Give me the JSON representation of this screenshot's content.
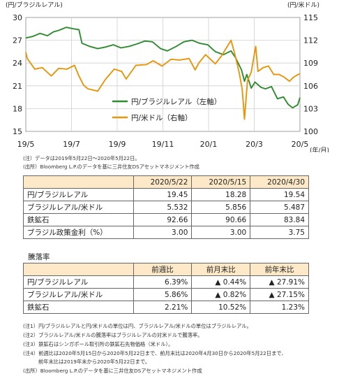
{
  "chart_data": {
    "type": "line",
    "y_left_label": "(円/ブラジルレアル)",
    "y_right_label": "(円/米ドル)",
    "x_unit_label": "(年/月)",
    "x_ticks": [
      "19/5",
      "19/7",
      "19/9",
      "19/11",
      "20/1",
      "20/3",
      "20/5"
    ],
    "y_left_ticks": [
      "30",
      "27",
      "24",
      "21",
      "18",
      "15"
    ],
    "y_right_ticks": [
      "115",
      "112",
      "109",
      "106",
      "103",
      "100"
    ],
    "y_left_lim": [
      15,
      30
    ],
    "y_right_lim": [
      100,
      115
    ],
    "x_range": [
      "2019-05-22",
      "2020-05-22"
    ],
    "grid": true,
    "legend_position": "center-right",
    "series": [
      {
        "name": "円/ブラジルレアル（左軸）",
        "axis": "left",
        "color": "#2e8b2e",
        "points": [
          [
            "2019-05-22",
            27.3
          ],
          [
            "2019-05-31",
            27.5
          ],
          [
            "2019-06-10",
            27.9
          ],
          [
            "2019-06-20",
            27.6
          ],
          [
            "2019-06-28",
            28.1
          ],
          [
            "2019-07-05",
            28.3
          ],
          [
            "2019-07-15",
            28.7
          ],
          [
            "2019-07-25",
            28.5
          ],
          [
            "2019-08-01",
            28.4
          ],
          [
            "2019-08-05",
            26.6
          ],
          [
            "2019-08-15",
            26.2
          ],
          [
            "2019-08-26",
            25.9
          ],
          [
            "2019-09-05",
            26.1
          ],
          [
            "2019-09-16",
            26.4
          ],
          [
            "2019-09-26",
            26.0
          ],
          [
            "2019-10-07",
            26.2
          ],
          [
            "2019-10-17",
            26.5
          ],
          [
            "2019-10-28",
            26.9
          ],
          [
            "2019-11-07",
            26.8
          ],
          [
            "2019-11-18",
            25.9
          ],
          [
            "2019-11-27",
            25.6
          ],
          [
            "2019-12-09",
            26.2
          ],
          [
            "2019-12-19",
            26.8
          ],
          [
            "2019-12-30",
            27.0
          ],
          [
            "2020-01-09",
            26.6
          ],
          [
            "2020-01-20",
            26.4
          ],
          [
            "2020-01-30",
            25.5
          ],
          [
            "2020-02-10",
            25.1
          ],
          [
            "2020-02-20",
            25.6
          ],
          [
            "2020-02-26",
            24.7
          ],
          [
            "2020-03-05",
            23.1
          ],
          [
            "2020-03-09",
            21.6
          ],
          [
            "2020-03-12",
            22.5
          ],
          [
            "2020-03-18",
            20.7
          ],
          [
            "2020-03-23",
            21.5
          ],
          [
            "2020-03-31",
            20.8
          ],
          [
            "2020-04-06",
            20.6
          ],
          [
            "2020-04-14",
            20.9
          ],
          [
            "2020-04-22",
            19.3
          ],
          [
            "2020-04-30",
            19.54
          ],
          [
            "2020-05-06",
            18.6
          ],
          [
            "2020-05-12",
            18.1
          ],
          [
            "2020-05-15",
            18.28
          ],
          [
            "2020-05-19",
            18.5
          ],
          [
            "2020-05-22",
            19.45
          ]
        ]
      },
      {
        "name": "円/米ドル（右軸）",
        "axis": "right",
        "color": "#e8950c",
        "points": [
          [
            "2019-05-22",
            110.4
          ],
          [
            "2019-05-24",
            109.6
          ],
          [
            "2019-06-03",
            108.2
          ],
          [
            "2019-06-13",
            108.4
          ],
          [
            "2019-06-25",
            107.3
          ],
          [
            "2019-07-05",
            108.3
          ],
          [
            "2019-07-16",
            108.2
          ],
          [
            "2019-07-26",
            108.7
          ],
          [
            "2019-08-01",
            107.3
          ],
          [
            "2019-08-07",
            106.1
          ],
          [
            "2019-08-13",
            105.6
          ],
          [
            "2019-08-26",
            105.3
          ],
          [
            "2019-09-05",
            106.8
          ],
          [
            "2019-09-17",
            108.2
          ],
          [
            "2019-09-27",
            107.9
          ],
          [
            "2019-10-03",
            106.9
          ],
          [
            "2019-10-16",
            108.7
          ],
          [
            "2019-10-30",
            108.8
          ],
          [
            "2019-11-08",
            109.3
          ],
          [
            "2019-11-20",
            108.6
          ],
          [
            "2019-12-02",
            109.5
          ],
          [
            "2019-12-13",
            109.4
          ],
          [
            "2019-12-26",
            109.6
          ],
          [
            "2020-01-03",
            108.1
          ],
          [
            "2020-01-08",
            109.0
          ],
          [
            "2020-01-17",
            110.1
          ],
          [
            "2020-01-30",
            108.9
          ],
          [
            "2020-02-07",
            109.9
          ],
          [
            "2020-02-20",
            112.0
          ],
          [
            "2020-02-25",
            110.2
          ],
          [
            "2020-03-02",
            107.7
          ],
          [
            "2020-03-06",
            105.5
          ],
          [
            "2020-03-09",
            101.6
          ],
          [
            "2020-03-13",
            106.7
          ],
          [
            "2020-03-18",
            107.8
          ],
          [
            "2020-03-24",
            111.2
          ],
          [
            "2020-03-27",
            107.9
          ],
          [
            "2020-04-03",
            108.4
          ],
          [
            "2020-04-10",
            108.6
          ],
          [
            "2020-04-17",
            107.5
          ],
          [
            "2020-04-24",
            107.5
          ],
          [
            "2020-04-30",
            107.2
          ],
          [
            "2020-05-08",
            106.6
          ],
          [
            "2020-05-13",
            107.1
          ],
          [
            "2020-05-18",
            107.4
          ],
          [
            "2020-05-22",
            107.6
          ]
        ]
      }
    ]
  },
  "chart_notes": {
    "note1": "(注）データは2019年5月22日～2020年5月22日。",
    "note2": "(出所）Bloomberg L.P.のデータを基に三井住友DSアセットマネジメント作成"
  },
  "table1": {
    "headers": [
      "2020/5/22",
      "2020/5/15",
      "2020/4/30"
    ],
    "rows": [
      {
        "label": "円/ブラジルレアル",
        "values": [
          "19.45",
          "18.28",
          "19.54"
        ]
      },
      {
        "label": "ブラジルレアル/米ドル",
        "values": [
          "5.532",
          "5.856",
          "5.487"
        ]
      },
      {
        "label": "鉄鉱石",
        "values": [
          "92.66",
          "90.66",
          "83.84"
        ]
      },
      {
        "label": "ブラジル政策金利（%）",
        "values": [
          "3.00",
          "3.00",
          "3.75"
        ]
      }
    ]
  },
  "table2": {
    "caption": "騰落率",
    "headers": [
      "前週比",
      "前月末比",
      "前年末比"
    ],
    "rows": [
      {
        "label": "円/ブラジルレアル",
        "values": [
          "6.39%",
          "▲ 0.44%",
          "▲ 27.91%"
        ]
      },
      {
        "label": "ブラジルレアル/米ドル",
        "values": [
          "5.86%",
          "▲ 0.82%",
          "▲ 27.15%"
        ]
      },
      {
        "label": "鉄鉱石",
        "values": [
          "2.21%",
          "10.52%",
          "1.23%"
        ]
      }
    ]
  },
  "footnotes": [
    "(注1）円/ブラジルレアルと円/米ドルの単位は円、ブラジルレアル/米ドルの単位はブラジルレアル。",
    "(注2）ブラジルレアル/米ドルの騰落率はブラジルレアルの対米ドルで騰落率。",
    "(注3）鉄鉱石はシンガポール取引所の鉄鉱石先物価格（米ドル）。",
    "(注4）前週比は2020年5月15日から2020年5月22日まで、前月末比は2020年4月30日から2020年5月22日まで、",
    "　　　前年末比は2019年末から2020年5月22日まで。",
    "(出所）Bloomberg L.P.のデータを基に三井住友DSアセットマネジメント作成"
  ]
}
